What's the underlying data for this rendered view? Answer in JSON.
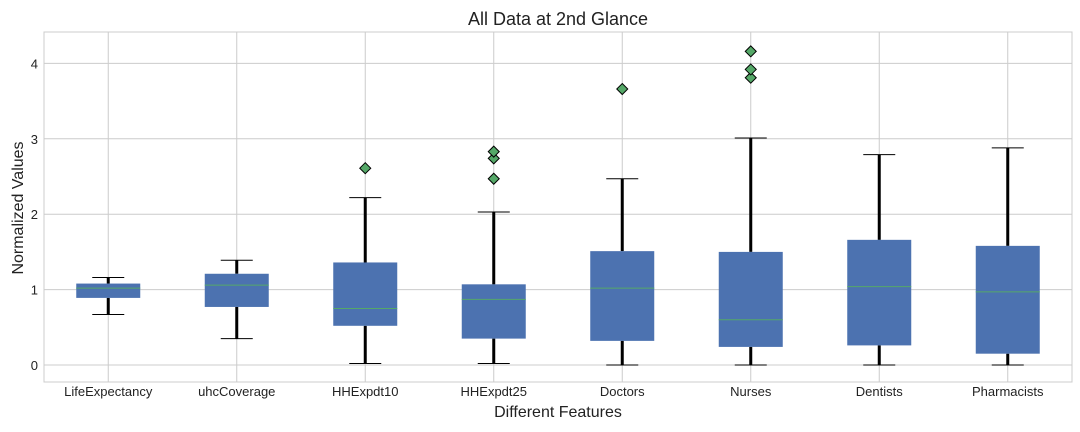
{
  "chart_data": {
    "type": "boxplot",
    "title": "All Data at 2nd Glance",
    "xlabel": "Different Features",
    "ylabel": "Normalized Values",
    "ylim": [
      -0.2,
      4.37
    ],
    "yticks": [
      0,
      1,
      2,
      3,
      4
    ],
    "grid": true,
    "legend": "none",
    "colors": {
      "box": "#4c72b0",
      "median": "#55a868",
      "whisker": "#000000",
      "outlier_fill": "#55a868",
      "grid": "#cccccc",
      "title": "#222222"
    },
    "categories": [
      "LifeExpectancy",
      "uhcCoverage",
      "HHExpdt10",
      "HHExpdt25",
      "Doctors",
      "Nurses",
      "Dentists",
      "Pharmacists"
    ],
    "boxes": [
      {
        "whislo": 0.67,
        "q1": 0.89,
        "med": 1.02,
        "q3": 1.08,
        "whishi": 1.16,
        "fliers": []
      },
      {
        "whislo": 0.35,
        "q1": 0.77,
        "med": 1.06,
        "q3": 1.21,
        "whishi": 1.39,
        "fliers": []
      },
      {
        "whislo": 0.02,
        "q1": 0.52,
        "med": 0.75,
        "q3": 1.36,
        "whishi": 2.22,
        "fliers": [
          2.61
        ]
      },
      {
        "whislo": 0.02,
        "q1": 0.35,
        "med": 0.87,
        "q3": 1.07,
        "whishi": 2.03,
        "fliers": [
          2.47,
          2.74,
          2.83
        ]
      },
      {
        "whislo": 0.0,
        "q1": 0.32,
        "med": 1.02,
        "q3": 1.51,
        "whishi": 2.47,
        "fliers": [
          3.66
        ]
      },
      {
        "whislo": 0.0,
        "q1": 0.24,
        "med": 0.6,
        "q3": 1.5,
        "whishi": 3.01,
        "fliers": [
          3.81,
          3.92,
          4.16
        ]
      },
      {
        "whislo": 0.0,
        "q1": 0.26,
        "med": 1.04,
        "q3": 1.66,
        "whishi": 2.79,
        "fliers": []
      },
      {
        "whislo": 0.0,
        "q1": 0.15,
        "med": 0.97,
        "q3": 1.58,
        "whishi": 2.88,
        "fliers": []
      }
    ]
  }
}
